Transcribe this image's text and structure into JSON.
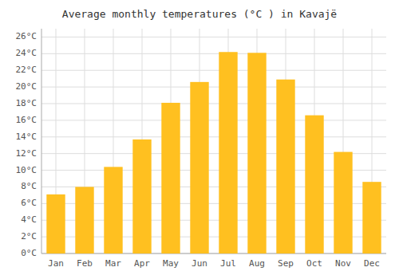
{
  "chart_data": {
    "type": "bar",
    "title": "Average monthly temperatures (°C ) in Kavajë",
    "categories": [
      "Jan",
      "Feb",
      "Mar",
      "Apr",
      "May",
      "Jun",
      "Jul",
      "Aug",
      "Sep",
      "Oct",
      "Nov",
      "Dec"
    ],
    "values": [
      7.1,
      8.0,
      10.4,
      13.7,
      18.1,
      20.6,
      24.2,
      24.1,
      20.9,
      16.6,
      12.2,
      8.6
    ],
    "color": "#FFC020",
    "ylim": [
      0,
      27
    ],
    "yticks": [
      {
        "value": 0,
        "label": "0°C"
      },
      {
        "value": 2,
        "label": "2°C"
      },
      {
        "value": 4,
        "label": "4°C"
      },
      {
        "value": 6,
        "label": "6°C"
      },
      {
        "value": 8,
        "label": "8°C"
      },
      {
        "value": 10,
        "label": "10°C"
      },
      {
        "value": 12,
        "label": "12°C"
      },
      {
        "value": 14,
        "label": "14°C"
      },
      {
        "value": 16,
        "label": "16°C"
      },
      {
        "value": 18,
        "label": "18°C"
      },
      {
        "value": 20,
        "label": "20°C"
      },
      {
        "value": 22,
        "label": "22°C"
      },
      {
        "value": 24,
        "label": "24°C"
      },
      {
        "value": 26,
        "label": "26°C"
      }
    ],
    "grid": true
  }
}
